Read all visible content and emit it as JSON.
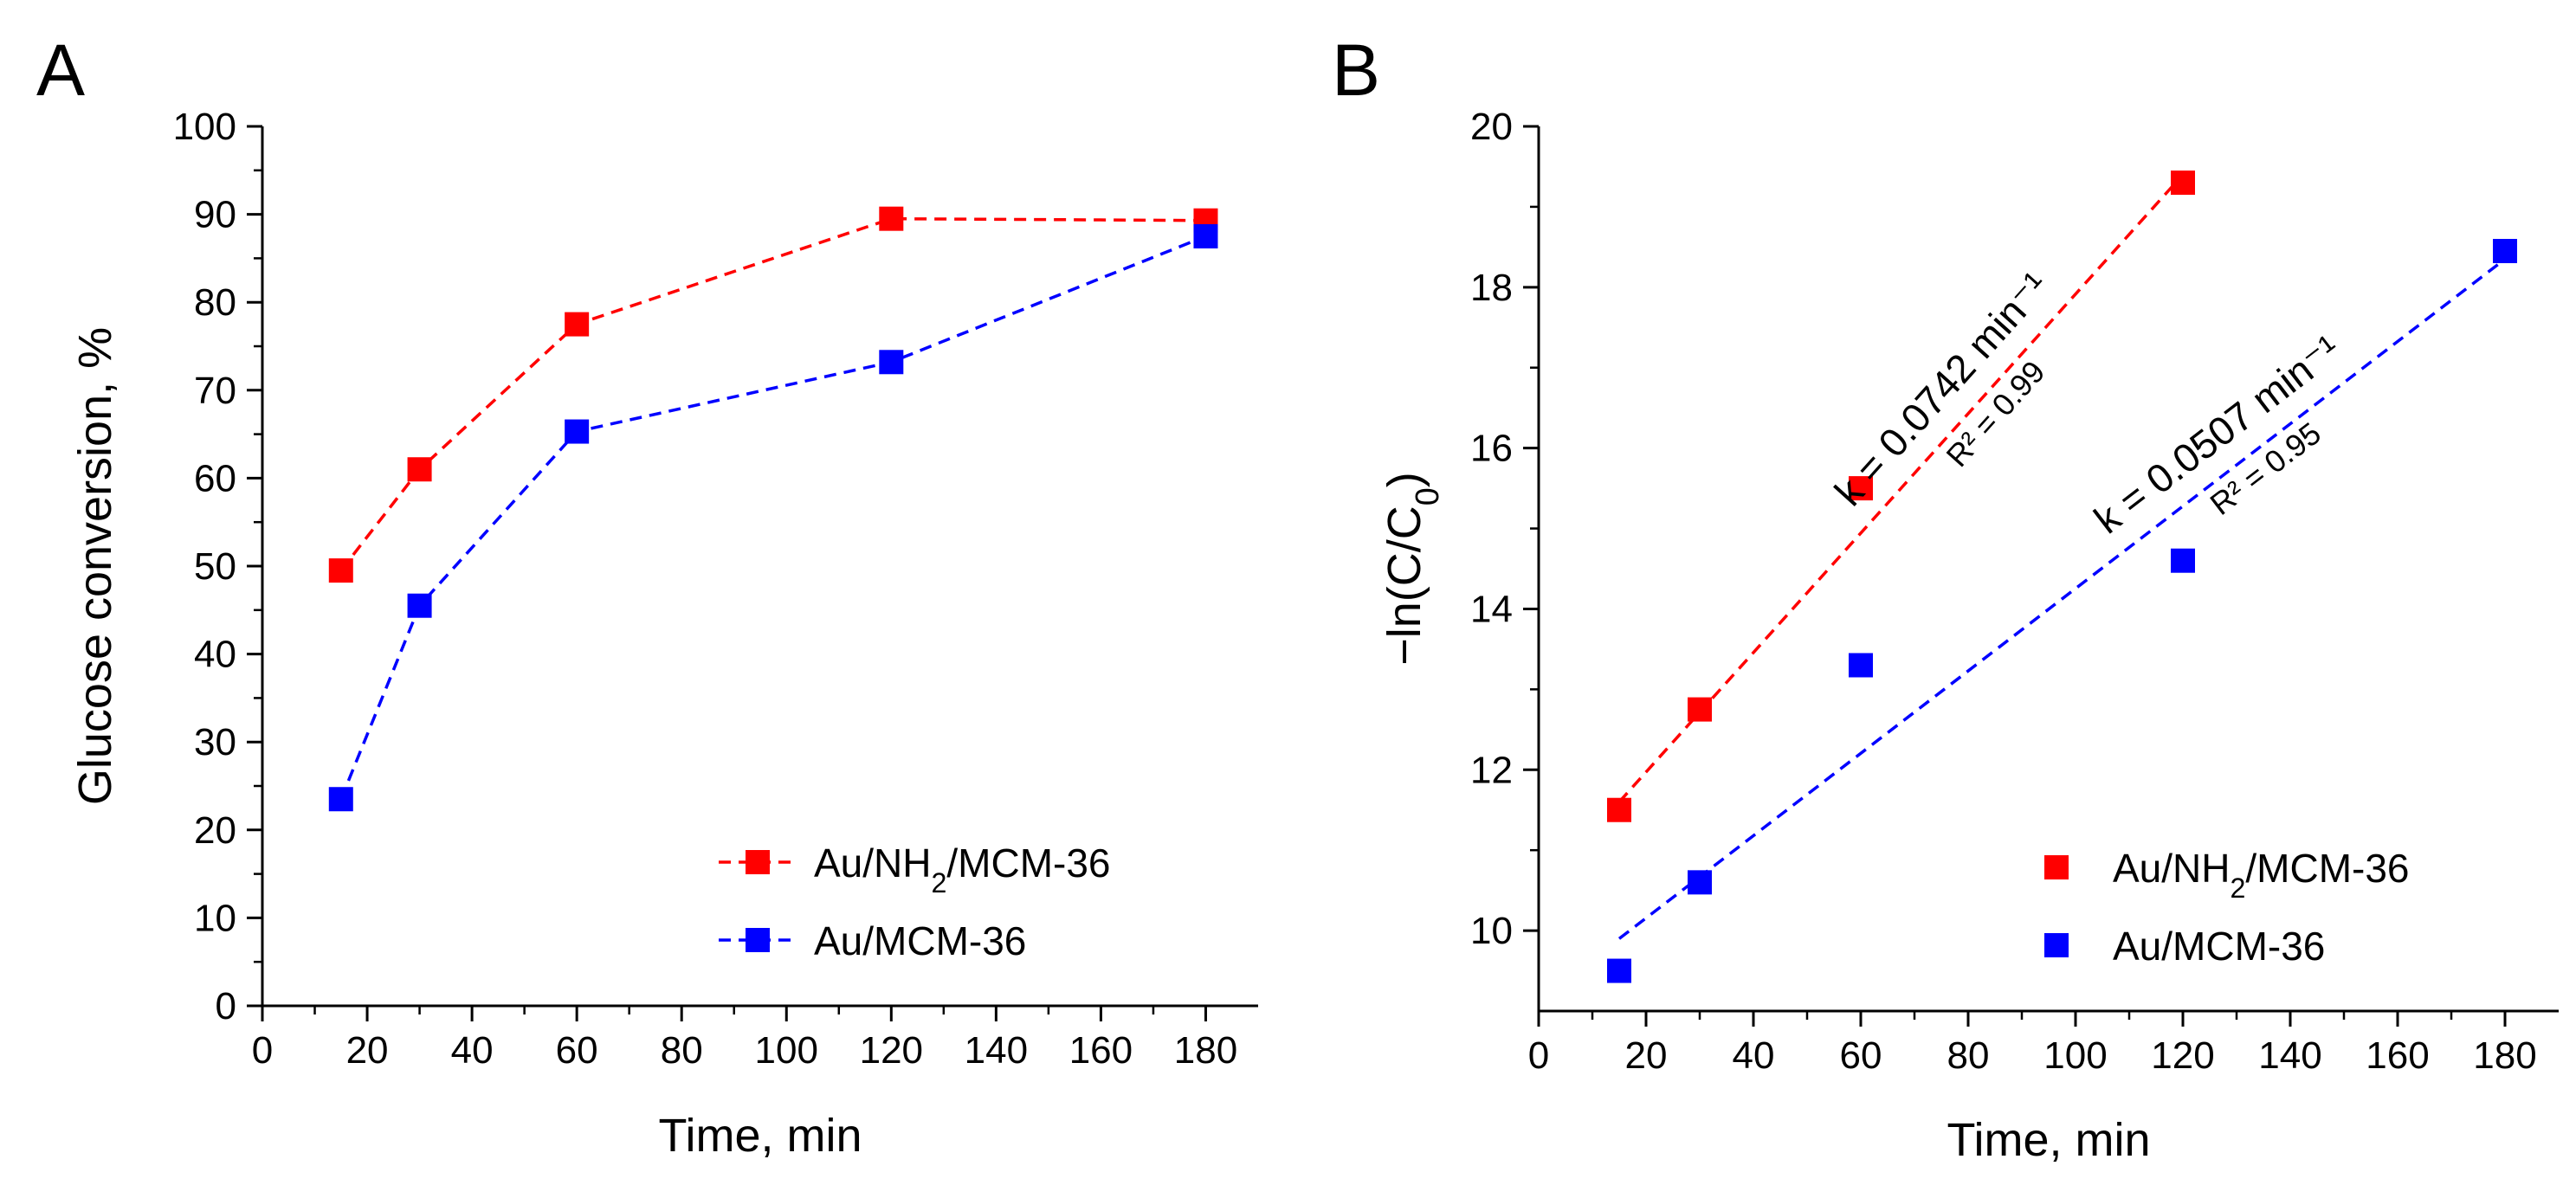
{
  "chart_data": [
    {
      "panel": "A",
      "type": "line",
      "xlabel": "Time, min",
      "ylabel": "Glucose conversion, %",
      "xlim": [
        0,
        190
      ],
      "ylim": [
        0,
        100
      ],
      "xticks": [
        0,
        20,
        40,
        60,
        80,
        100,
        120,
        140,
        160,
        180
      ],
      "yticks": [
        0,
        10,
        20,
        30,
        40,
        50,
        60,
        70,
        80,
        90,
        100
      ],
      "grid": false,
      "legend_position": "bottom-right",
      "series": [
        {
          "name": "Au/NH2/MCM-36",
          "color": "#ff0000",
          "line_style": "dashed",
          "marker": "square",
          "x": [
            15,
            30,
            60,
            120,
            180
          ],
          "y": [
            49.5,
            61,
            77.5,
            89.5,
            89.3
          ]
        },
        {
          "name": "Au/MCM-36",
          "color": "#0000ff",
          "line_style": "dashed",
          "marker": "square",
          "x": [
            15,
            30,
            60,
            120,
            180
          ],
          "y": [
            23.5,
            45.5,
            65.3,
            73.2,
            87.5
          ]
        }
      ]
    },
    {
      "panel": "B",
      "type": "scatter",
      "xlabel": "Time, min",
      "ylabel": "−ln(C/C0)",
      "xlim": [
        0,
        190
      ],
      "ylim": [
        9,
        20
      ],
      "xticks": [
        0,
        20,
        40,
        60,
        80,
        100,
        120,
        140,
        160,
        180
      ],
      "yticks": [
        10,
        12,
        14,
        16,
        18,
        20
      ],
      "grid": false,
      "legend_position": "bottom-right",
      "series": [
        {
          "name": "Au/NH2/MCM-36",
          "color": "#ff0000",
          "marker": "square",
          "x": [
            15,
            30,
            60,
            120
          ],
          "y": [
            11.5,
            12.75,
            15.5,
            19.3
          ],
          "fit": {
            "x": [
              15,
              120
            ],
            "y": [
              11.6,
              19.4
            ],
            "line_style": "dashed"
          },
          "annotation": {
            "k": "k = 0.0742 min⁻¹",
            "r2": "R² = 0.99"
          }
        },
        {
          "name": "Au/MCM-36",
          "color": "#0000ff",
          "marker": "square",
          "x": [
            15,
            30,
            60,
            120,
            180
          ],
          "y": [
            9.5,
            10.6,
            13.3,
            14.6,
            18.45
          ],
          "fit": {
            "x": [
              15,
              180
            ],
            "y": [
              9.9,
              18.35
            ],
            "line_style": "dashed"
          },
          "annotation": {
            "k": "k = 0.0507 min⁻¹",
            "r2": "R² = 0.95"
          }
        }
      ]
    }
  ]
}
